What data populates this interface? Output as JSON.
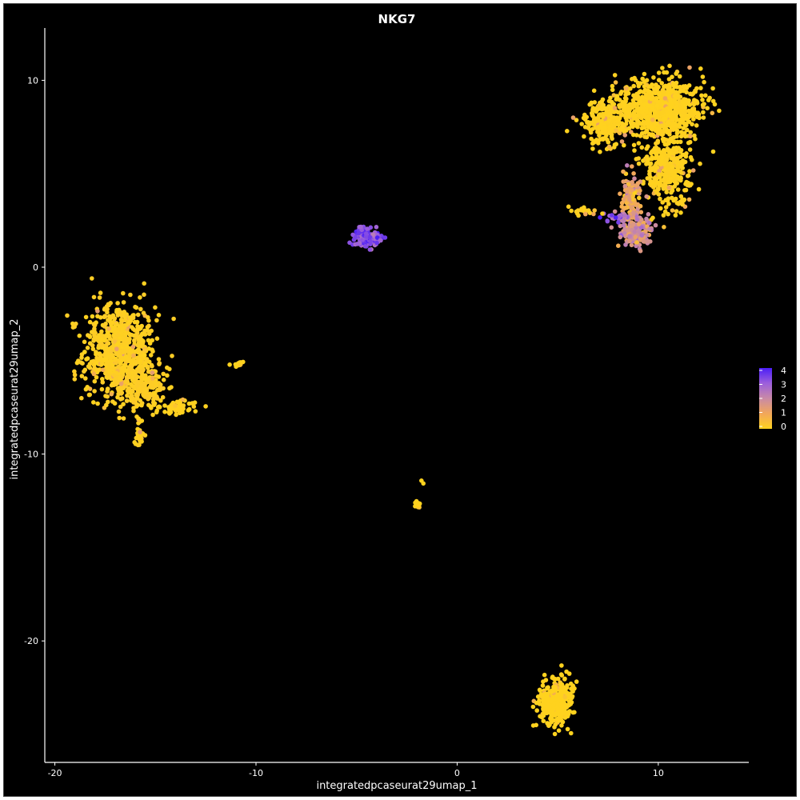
{
  "chart_data": {
    "type": "scatter",
    "title": "NKG7",
    "xlabel": "integratedpcaseurat29umap_1",
    "ylabel": "integratedpcaseurat29umap_2",
    "xlim": [
      -20.5,
      14.5
    ],
    "ylim": [
      -26.5,
      12.8
    ],
    "x_ticks": [
      -20,
      -10,
      0,
      10
    ],
    "y_ticks": [
      -20,
      -10,
      0,
      10
    ],
    "x_tick_labels": [
      "-20",
      "-10",
      "0",
      "10"
    ],
    "y_tick_labels": [
      "-20",
      "-10",
      "0",
      "10"
    ],
    "grid": false,
    "background": "#000000",
    "legend": {
      "placement": "right",
      "type": "colorbar",
      "min": 0,
      "max": 4,
      "ticks": [
        4,
        3,
        2,
        1,
        0
      ],
      "tick_labels": [
        "4",
        "3",
        "2",
        "1",
        "0"
      ],
      "colors": [
        "#FFD21E",
        "#F2A75A",
        "#C98AA6",
        "#9C5FDC",
        "#4B1EF6"
      ]
    },
    "clusters": [
      {
        "name": "",
        "center": [
          -16.8,
          -4.5
        ],
        "spread": [
          0.9,
          1.3
        ],
        "n": 700,
        "expr": 0.15
      },
      {
        "name": "",
        "center": [
          -15.6,
          -6.3
        ],
        "spread": [
          0.6,
          0.6
        ],
        "n": 180,
        "expr": 0.2
      },
      {
        "name": "",
        "center": [
          -15.8,
          -8.9
        ],
        "spread": [
          0.12,
          0.4
        ],
        "n": 40,
        "expr": 0.1
      },
      {
        "name": "",
        "center": [
          -14.0,
          -7.5
        ],
        "spread": [
          0.6,
          0.2
        ],
        "n": 60,
        "expr": 0.05
      },
      {
        "name": "",
        "center": [
          -10.9,
          -5.2
        ],
        "spread": [
          0.18,
          0.08
        ],
        "n": 12,
        "expr": 0
      },
      {
        "name": "",
        "center": [
          -4.5,
          1.6
        ],
        "spread": [
          0.32,
          0.22
        ],
        "n": 160,
        "expr": 3.3
      },
      {
        "name": "",
        "center": [
          -2.0,
          -12.6
        ],
        "spread": [
          0.08,
          0.1
        ],
        "n": 12,
        "expr": 0
      },
      {
        "name": "",
        "center": [
          -1.7,
          -11.5
        ],
        "spread": [
          0.05,
          0.05
        ],
        "n": 2,
        "expr": 0
      },
      {
        "name": "",
        "center": [
          10.1,
          8.5
        ],
        "spread": [
          1.1,
          0.75
        ],
        "n": 800,
        "expr": 0.05
      },
      {
        "name": "",
        "center": [
          7.3,
          7.8
        ],
        "spread": [
          0.55,
          0.55
        ],
        "n": 220,
        "expr": 0.05
      },
      {
        "name": "",
        "center": [
          10.5,
          5.3
        ],
        "spread": [
          0.6,
          1.0
        ],
        "n": 350,
        "expr": 0.08
      },
      {
        "name": "",
        "center": [
          8.6,
          3.5
        ],
        "spread": [
          0.25,
          0.8
        ],
        "n": 110,
        "expr": 1.0
      },
      {
        "name": "",
        "center": [
          8.9,
          2.0
        ],
        "spread": [
          0.4,
          0.5
        ],
        "n": 150,
        "expr": 1.8
      },
      {
        "name": "",
        "center": [
          7.9,
          2.7
        ],
        "spread": [
          0.3,
          0.12
        ],
        "n": 30,
        "expr": 3.0
      },
      {
        "name": "",
        "center": [
          6.3,
          3.0
        ],
        "spread": [
          0.3,
          0.15
        ],
        "n": 20,
        "expr": 0.1
      },
      {
        "name": "",
        "center": [
          4.9,
          -23.3
        ],
        "spread": [
          0.4,
          0.6
        ],
        "n": 380,
        "expr": 0
      }
    ]
  }
}
